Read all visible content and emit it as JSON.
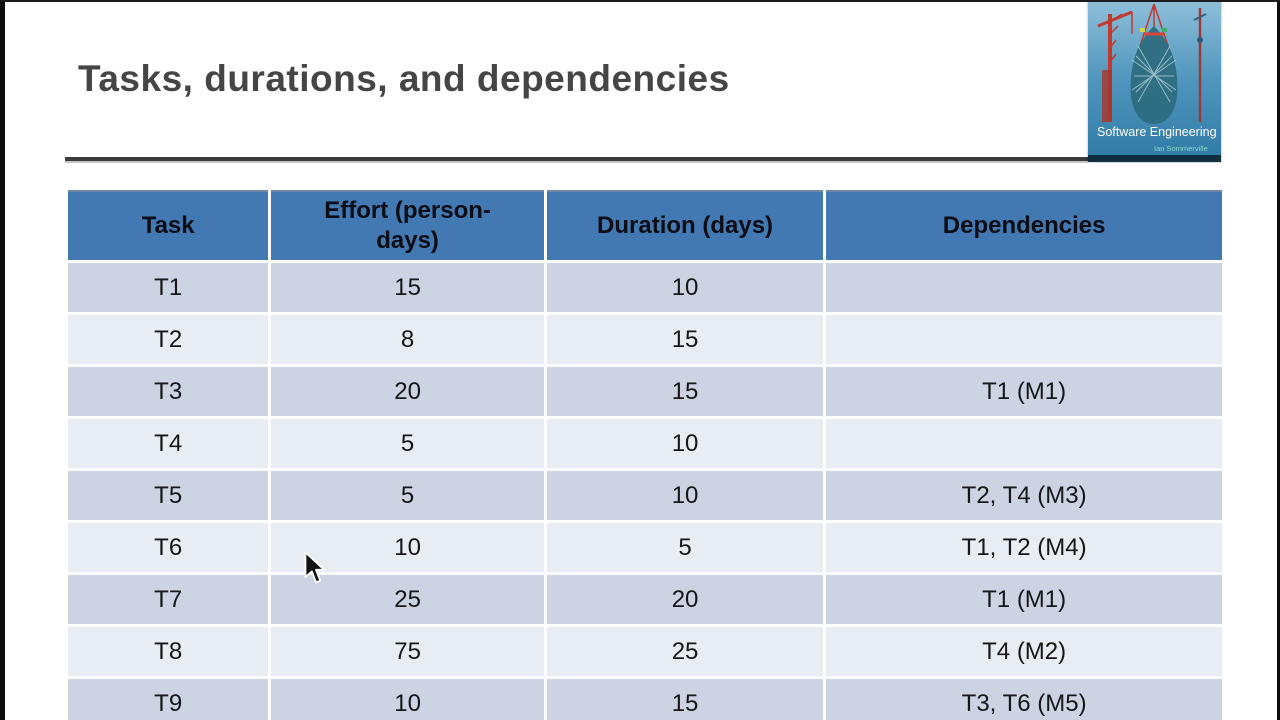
{
  "slide": {
    "title": "Tasks, durations, and dependencies"
  },
  "book_cover": {
    "title": "Software Engineering",
    "author": "Ian Sommerville"
  },
  "table": {
    "headers": [
      "Task",
      "Effort (person-days)",
      "Duration (days)",
      "Dependencies"
    ],
    "rows": [
      [
        "T1",
        "15",
        "10",
        ""
      ],
      [
        "T2",
        "8",
        "15",
        ""
      ],
      [
        "T3",
        "20",
        "15",
        "T1 (M1)"
      ],
      [
        "T4",
        "5",
        "10",
        ""
      ],
      [
        "T5",
        "5",
        "10",
        "T2, T4 (M3)"
      ],
      [
        "T6",
        "10",
        "5",
        "T1, T2 (M4)"
      ],
      [
        "T7",
        "25",
        "20",
        "T1 (M1)"
      ],
      [
        "T8",
        "75",
        "25",
        "T4 (M2)"
      ],
      [
        "T9",
        "10",
        "15",
        "T3, T6 (M5)"
      ]
    ]
  },
  "colors": {
    "header_bg": "#4379b2",
    "row_dark": "#ccd3e3",
    "row_light": "#e8ecf3",
    "title_text": "#454545"
  }
}
